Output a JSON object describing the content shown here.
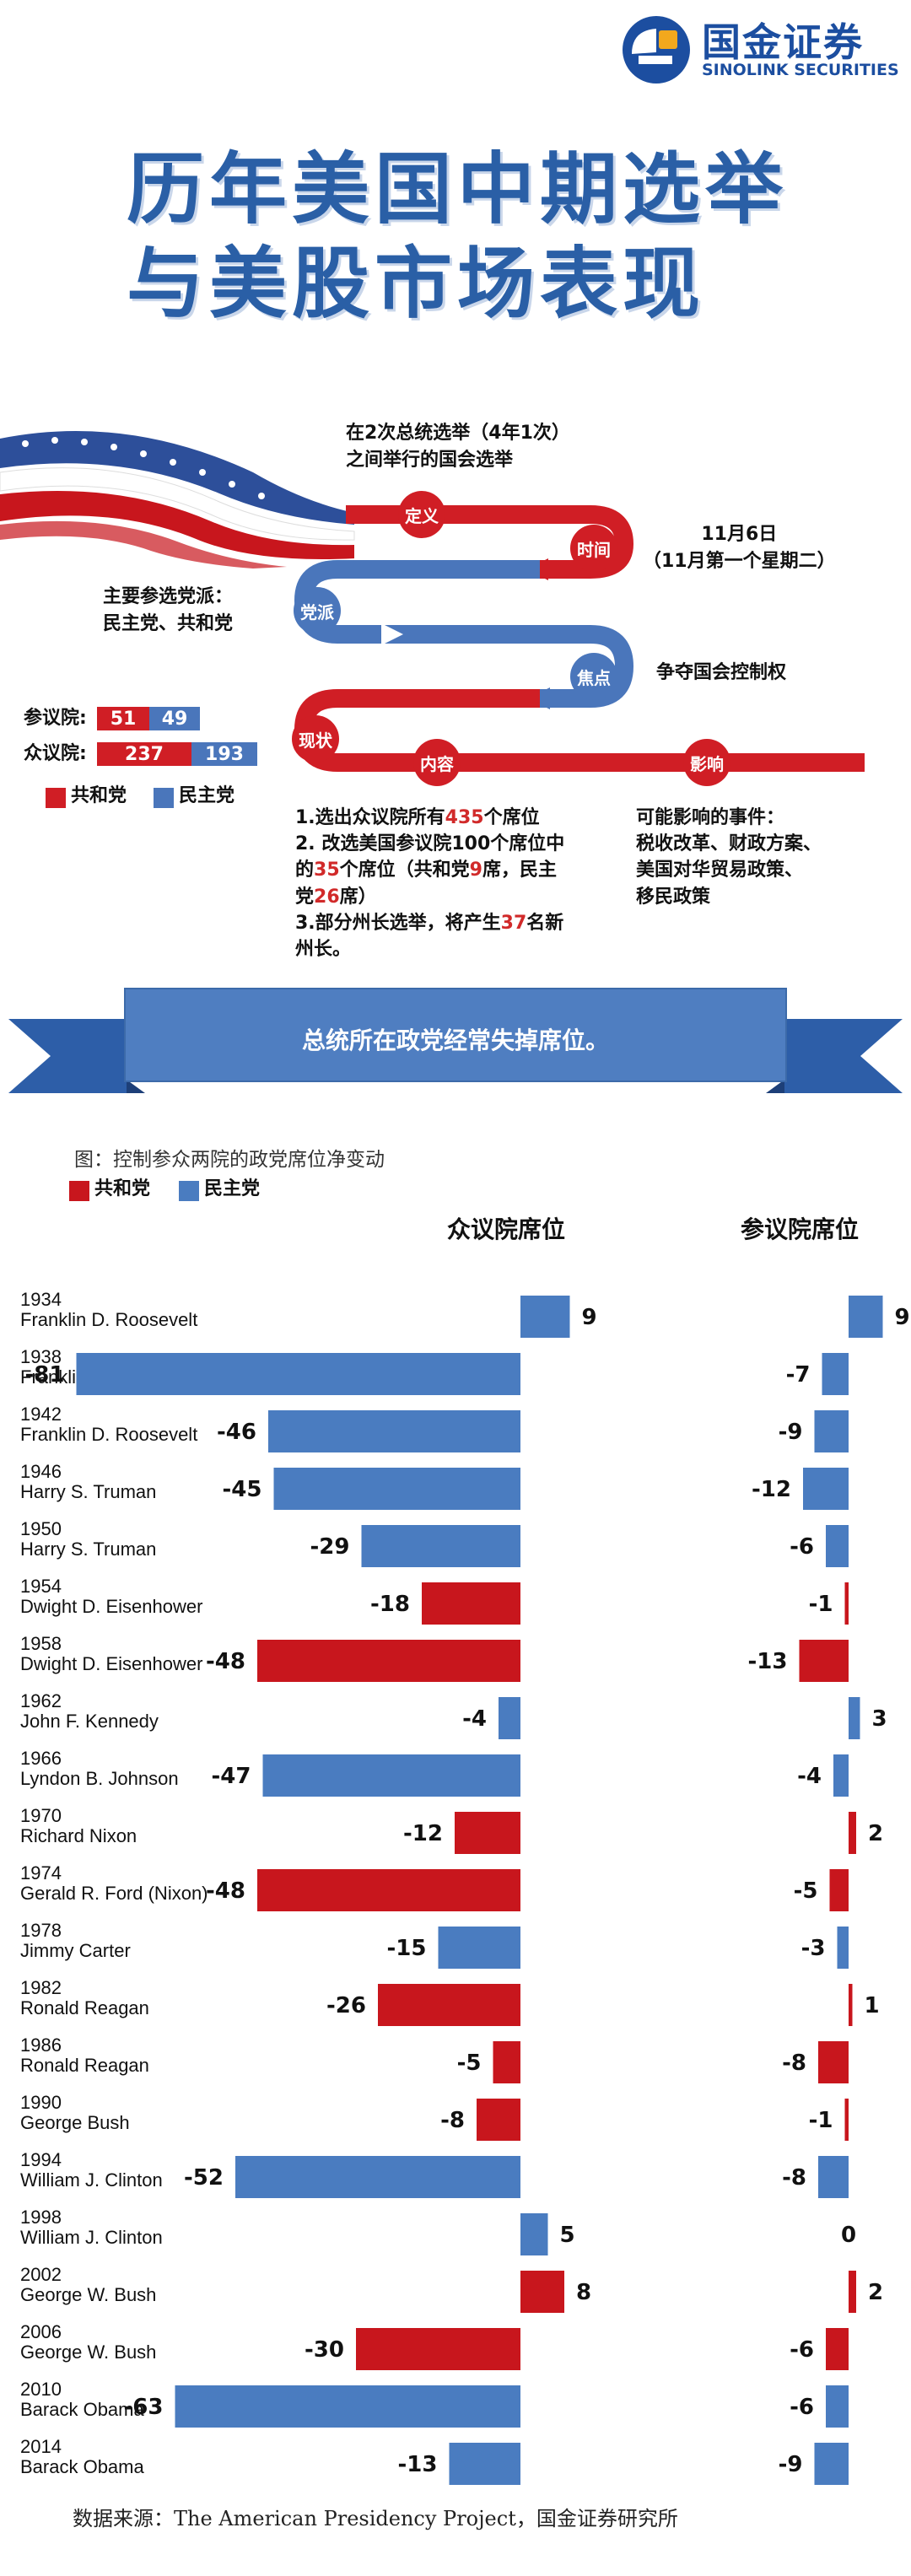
{
  "brand": {
    "name_cn": "国金证券",
    "name_en": "SINOLINK SECURITIES",
    "colors": {
      "blue": "#1c4ea0",
      "accent": "#f2a81d"
    }
  },
  "title": {
    "line1": "历年美国中期选举",
    "line2": "与美股市场表现"
  },
  "infographic": {
    "definition_text": [
      "在2次总统选举（4年1次）",
      "之间举行的国会选举"
    ],
    "stations": {
      "definition": "定义",
      "time": "时间",
      "parties": "党派",
      "focus": "焦点",
      "status": "现状",
      "content": "内容",
      "impact": "影响"
    },
    "time_text": [
      "11月6日",
      "（11月第一个星期二）"
    ],
    "parties_text": [
      "主要参选党派：",
      "民主党、共和党"
    ],
    "focus_text": "争夺国会控制权",
    "seats": {
      "senate_label": "参议院:",
      "senate_rep": "51",
      "senate_dem": "49",
      "house_label": "众议院:",
      "house_rep": "237",
      "house_dem": "193"
    },
    "legend": {
      "republican": "共和党",
      "democrat": "民主党"
    },
    "content_lines": [
      [
        "1.选出众议院所有",
        "435",
        "个席位"
      ],
      [
        "2. 改选美国参议院100个席位中",
        "",
        ""
      ],
      [
        "的",
        "35",
        "个席位（共和党",
        "9",
        "席，民主"
      ],
      [
        "党",
        "26",
        "席）"
      ],
      [
        "3.部分州长选举，将产生",
        "37",
        "名新"
      ],
      [
        "州长。",
        "",
        ""
      ]
    ],
    "impact_text": [
      "可能影响的事件：",
      "税收改革、财政方案、",
      "美国对华贸易政策、",
      "移民政策"
    ],
    "colors": {
      "red": "#d01e25",
      "blue": "#4a76bb"
    }
  },
  "banner": {
    "text": "总统所在政党经常失掉席位。"
  },
  "chart_data": {
    "type": "bar",
    "orientation": "horizontal",
    "title": "图：控制参众两院的政党席位净变动",
    "legend": [
      {
        "name": "共和党",
        "color": "#c8161d"
      },
      {
        "name": "民主党",
        "color": "#4a7cc0"
      }
    ],
    "legend_placement": "top-left",
    "panels": [
      {
        "name": "众议院席位"
      },
      {
        "name": "参议院席位"
      }
    ],
    "categories": [
      {
        "year": "1934",
        "president": "Franklin D. Roosevelt",
        "party": "民主党"
      },
      {
        "year": "1938",
        "president": "Franklin D. Roosevelt",
        "party": "民主党"
      },
      {
        "year": "1942",
        "president": "Franklin D. Roosevelt",
        "party": "民主党"
      },
      {
        "year": "1946",
        "president": "Harry S. Truman",
        "party": "民主党"
      },
      {
        "year": "1950",
        "president": "Harry S. Truman",
        "party": "民主党"
      },
      {
        "year": "1954",
        "president": "Dwight D. Eisenhower",
        "party": "共和党"
      },
      {
        "year": "1958",
        "president": "Dwight D. Eisenhower",
        "party": "共和党"
      },
      {
        "year": "1962",
        "president": "John F. Kennedy",
        "party": "民主党"
      },
      {
        "year": "1966",
        "president": "Lyndon B. Johnson",
        "party": "民主党"
      },
      {
        "year": "1970",
        "president": "Richard Nixon",
        "party": "共和党"
      },
      {
        "year": "1974",
        "president": "Gerald R. Ford (Nixon)",
        "party": "共和党"
      },
      {
        "year": "1978",
        "president": "Jimmy Carter",
        "party": "民主党"
      },
      {
        "year": "1982",
        "president": "Ronald Reagan",
        "party": "共和党"
      },
      {
        "year": "1986",
        "president": "Ronald Reagan",
        "party": "共和党"
      },
      {
        "year": "1990",
        "president": "George Bush",
        "party": "共和党"
      },
      {
        "year": "1994",
        "president": "William J. Clinton",
        "party": "民主党"
      },
      {
        "year": "1998",
        "president": "William J. Clinton",
        "party": "民主党"
      },
      {
        "year": "2002",
        "president": "George W. Bush",
        "party": "共和党"
      },
      {
        "year": "2006",
        "president": "George W. Bush",
        "party": "共和党"
      },
      {
        "year": "2010",
        "president": "Barack Obama",
        "party": "民主党"
      },
      {
        "year": "2014",
        "president": "Barack Obama",
        "party": "民主党"
      }
    ],
    "series": [
      {
        "name": "众议院席位",
        "values": [
          9,
          -81,
          -46,
          -45,
          -29,
          -18,
          -48,
          -4,
          -47,
          -12,
          -48,
          -15,
          -26,
          -5,
          -8,
          -52,
          5,
          8,
          -30,
          -63,
          -13
        ]
      },
      {
        "name": "参议院席位",
        "values": [
          9,
          -7,
          -9,
          -12,
          -6,
          -1,
          -13,
          3,
          -4,
          2,
          -5,
          -3,
          1,
          -8,
          -1,
          -8,
          0,
          2,
          -6,
          -6,
          -9
        ]
      }
    ],
    "grid": false
  },
  "source": "数据来源：The American Presidency Project，国金证券研究所"
}
